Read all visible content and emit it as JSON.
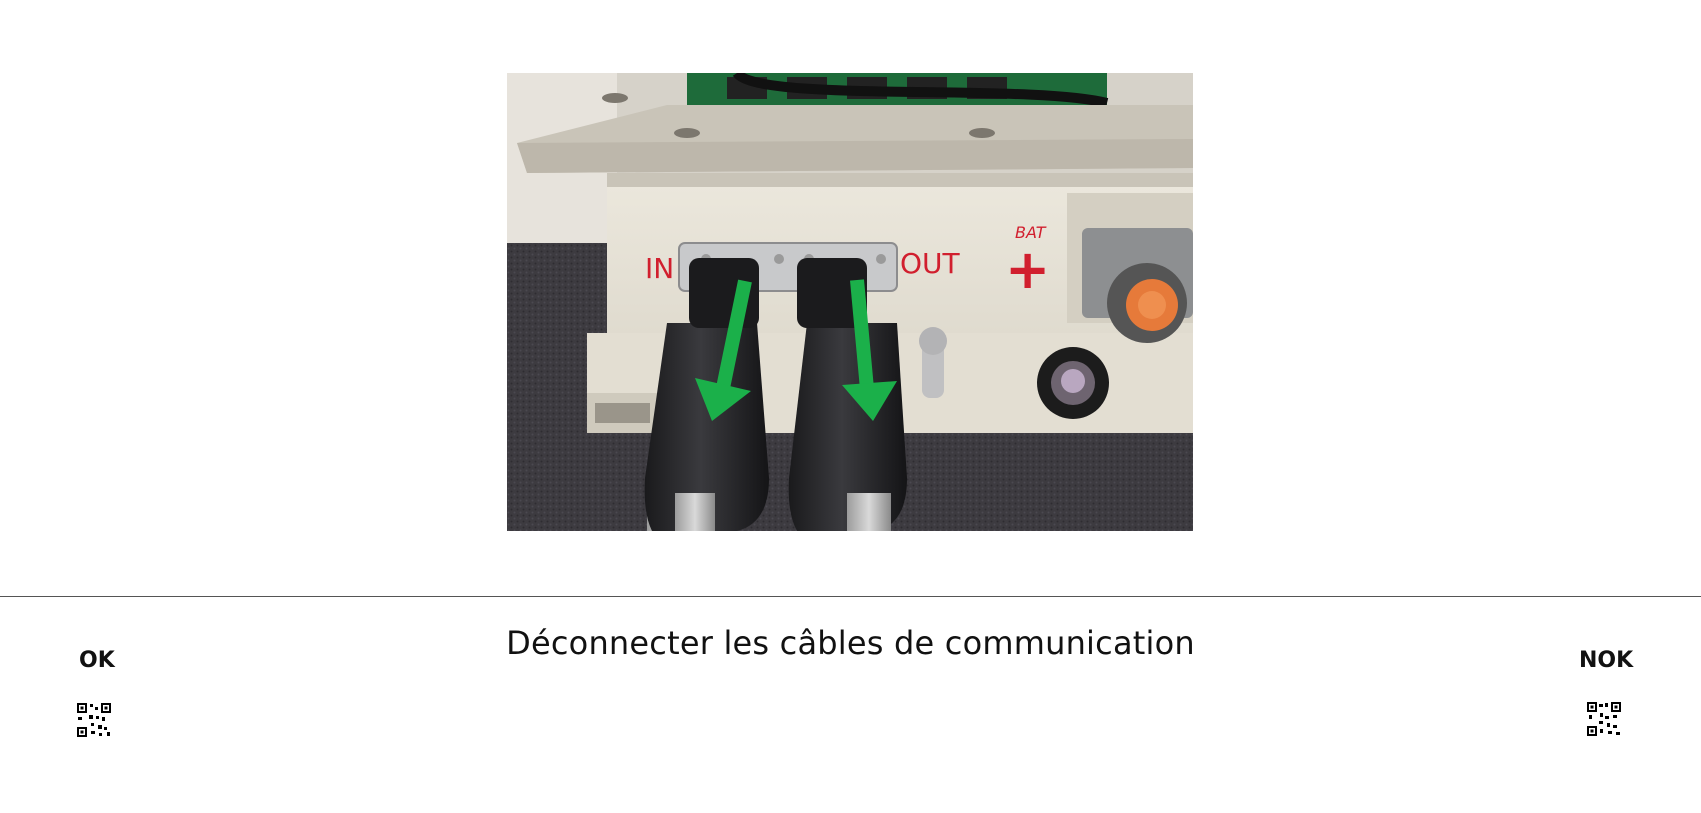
{
  "photo": {
    "panel_labels": {
      "in": "IN",
      "out": "OUT",
      "bat": "BAT",
      "plus": "+"
    },
    "arrow_color": "#1bb04a",
    "label_color": "#d11f2e"
  },
  "instruction": {
    "text": "Déconnecter les câbles de communication"
  },
  "ok": {
    "label": "OK",
    "icon": "qr-code-icon"
  },
  "nok": {
    "label": "NOK",
    "icon": "qr-code-icon"
  }
}
